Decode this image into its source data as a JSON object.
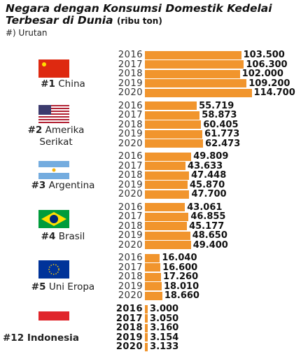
{
  "chart_data": {
    "type": "bar",
    "title": "Negara dengan Konsumsi Domestik Kedelai Terbesar di Dunia",
    "unit": "(ribu ton)",
    "note": "#) Urutan",
    "color": "#f1952d",
    "groups": [
      {
        "rank": "#1",
        "name": "China",
        "categories": [
          "2016",
          "2017",
          "2018",
          "2019",
          "2020"
        ],
        "values": [
          103500,
          106300,
          102000,
          109200,
          114700
        ],
        "value_labels": [
          "103.500",
          "106.300",
          "102.000",
          "109.200",
          "114.700"
        ]
      },
      {
        "rank": "#2",
        "name": "Amerika Serikat",
        "categories": [
          "2016",
          "2017",
          "2018",
          "2019",
          "2020"
        ],
        "values": [
          55719,
          58873,
          60405,
          61773,
          62473
        ],
        "value_labels": [
          "55.719",
          "58.873",
          "60.405",
          "61.773",
          "62.473"
        ]
      },
      {
        "rank": "#3",
        "name": "Argentina",
        "categories": [
          "2016",
          "2017",
          "2018",
          "2019",
          "2020"
        ],
        "values": [
          49809,
          43633,
          47448,
          45870,
          47700
        ],
        "value_labels": [
          "49.809",
          "43.633",
          "47.448",
          "45.870",
          "47.700"
        ]
      },
      {
        "rank": "#4",
        "name": "Brasil",
        "categories": [
          "2016",
          "2017",
          "2018",
          "2019",
          "2020"
        ],
        "values": [
          43061,
          46855,
          45177,
          48650,
          49400
        ],
        "value_labels": [
          "43.061",
          "46.855",
          "45.177",
          "48.650",
          "49.400"
        ]
      },
      {
        "rank": "#5",
        "name": "Uni Eropa",
        "categories": [
          "2016",
          "2017",
          "2018",
          "2019",
          "2020"
        ],
        "values": [
          16040,
          16600,
          17260,
          18010,
          18660
        ],
        "value_labels": [
          "16.040",
          "16.600",
          "17.260",
          "18.010",
          "18.660"
        ]
      },
      {
        "rank": "#12",
        "name": "Indonesia",
        "categories": [
          "2016",
          "2017",
          "2018",
          "2019",
          "2020"
        ],
        "values": [
          3000,
          3050,
          3160,
          3154,
          3133
        ],
        "value_labels": [
          "3.000",
          "3.050",
          "3.160",
          "3.154",
          "3.133"
        ]
      }
    ]
  }
}
